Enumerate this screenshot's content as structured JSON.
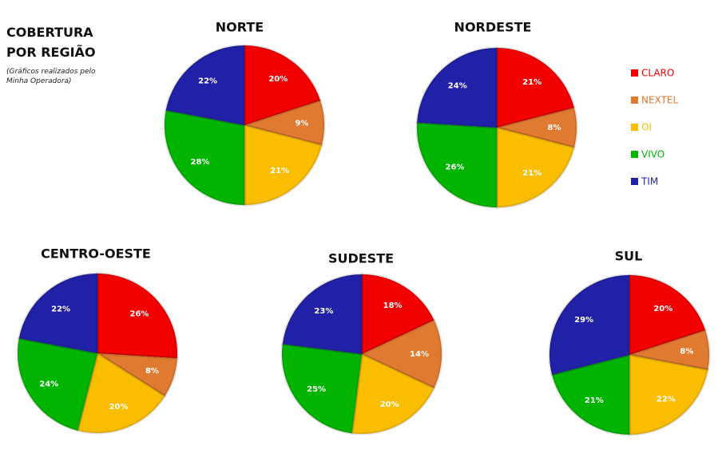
{
  "header": {
    "title": "COBERTURA POR REGIÃO",
    "note": "(Gráficos realizados pelo Minha Operadora)"
  },
  "legend": {
    "categories": [
      "CLARO",
      "NEXTEL",
      "OI",
      "VIVO",
      "TIM"
    ],
    "colors": [
      "#f20000",
      "#e07a30",
      "#fbbd00",
      "#00b400",
      "#2121a8"
    ]
  },
  "chart_data": [
    {
      "type": "pie",
      "title": "NORTE",
      "values": [
        20,
        9,
        21,
        28,
        22
      ],
      "value_labels": [
        "20%",
        "9%",
        "21%",
        "28%",
        "22%"
      ]
    },
    {
      "type": "pie",
      "title": "NORDESTE",
      "values": [
        21,
        8,
        21,
        26,
        24
      ],
      "value_labels": [
        "21%",
        "8%",
        "21%",
        "26%",
        "24%"
      ]
    },
    {
      "type": "pie",
      "title": "CENTRO-OESTE",
      "values": [
        26,
        8,
        20,
        24,
        22
      ],
      "value_labels": [
        "26%",
        "8%",
        "20%",
        "24%",
        "22%"
      ]
    },
    {
      "type": "pie",
      "title": "SUDESTE",
      "values": [
        18,
        14,
        20,
        25,
        23
      ],
      "value_labels": [
        "18%",
        "14%",
        "20%",
        "25%",
        "23%"
      ]
    },
    {
      "type": "pie",
      "title": "SUL",
      "values": [
        20,
        8,
        22,
        21,
        29
      ],
      "value_labels": [
        "20%",
        "8%",
        "22%",
        "21%",
        "29%"
      ]
    }
  ]
}
